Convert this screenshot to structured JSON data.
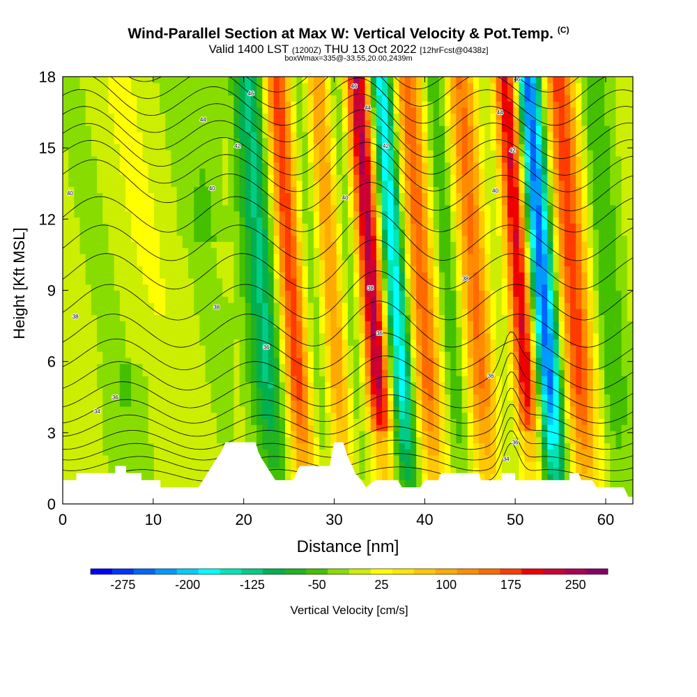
{
  "header": {
    "title": "Wind-Parallel Section at Max W: Vertical Velocity & Pot.Temp.",
    "copyright": "(C)",
    "valid_prefix": "Valid 1400 LST",
    "valid_utc": "(1200Z)",
    "valid_date": "THU 13 Oct 2022",
    "forecast": "[12hrFcst@0438z]",
    "box_info": "boxWmax=335@-33.55,20.00,2439m"
  },
  "chart_data": {
    "type": "heatmap",
    "title": "Wind-Parallel Section at Max W: Vertical Velocity & Pot.Temp.",
    "xlabel": "Distance [nm]",
    "ylabel": "Height [Kft MSL]",
    "xlim": [
      0,
      63
    ],
    "ylim": [
      0,
      18
    ],
    "xticks": [
      0,
      10,
      20,
      30,
      40,
      50,
      60
    ],
    "yticks": [
      0,
      3,
      6,
      9,
      12,
      15,
      18
    ],
    "colorbar": {
      "label": "Vertical Velocity [cm/s]",
      "tick_labels": [
        "-275",
        "-200",
        "-125",
        "-50",
        "25",
        "100",
        "175",
        "250"
      ],
      "levels": [
        -300,
        -275,
        -250,
        -225,
        -200,
        -175,
        -150,
        -125,
        -100,
        -75,
        -50,
        -25,
        0,
        25,
        50,
        75,
        100,
        125,
        150,
        175,
        200,
        225,
        250,
        275
      ],
      "colors": [
        "#0000ff",
        "#0033ff",
        "#0066ff",
        "#0099ff",
        "#00ccff",
        "#00ffff",
        "#00e6b3",
        "#00cc88",
        "#00b050",
        "#22b222",
        "#44c000",
        "#88dd00",
        "#ccee00",
        "#ffff00",
        "#ffe600",
        "#ffc800",
        "#ffaa00",
        "#ff8c00",
        "#ff6a00",
        "#ff3c00",
        "#ee0000",
        "#cc0033",
        "#aa0055",
        "#880066"
      ]
    },
    "velocity_bands": [
      {
        "x": 21.3,
        "w": 2.2,
        "amp": -120
      },
      {
        "x": 24.3,
        "w": 1.6,
        "amp": 200
      },
      {
        "x": 26.8,
        "w": 1.6,
        "amp": -60
      },
      {
        "x": 28.8,
        "w": 1.5,
        "amp": 130
      },
      {
        "x": 31.0,
        "w": 1.5,
        "amp": -60
      },
      {
        "x": 33.3,
        "w": 1.5,
        "amp": 260
      },
      {
        "x": 35.8,
        "w": 1.5,
        "amp": -200
      },
      {
        "x": 38.8,
        "w": 1.8,
        "amp": 160
      },
      {
        "x": 41.8,
        "w": 1.8,
        "amp": -80
      },
      {
        "x": 44.6,
        "w": 1.9,
        "amp": 150
      },
      {
        "x": 47.2,
        "w": 1.5,
        "amp": -40
      },
      {
        "x": 49.8,
        "w": 1.5,
        "amp": 250
      },
      {
        "x": 52.0,
        "w": 1.6,
        "amp": -275
      },
      {
        "x": 55.5,
        "w": 1.8,
        "amp": 180
      },
      {
        "x": 59.3,
        "w": 1.8,
        "amp": -60
      }
    ],
    "terrain": [
      [
        0,
        1.0
      ],
      [
        1.5,
        1.0
      ],
      [
        1.5,
        1.3
      ],
      [
        5.8,
        1.3
      ],
      [
        5.8,
        1.6
      ],
      [
        7,
        1.6
      ],
      [
        7,
        1.3
      ],
      [
        8.7,
        1.3
      ],
      [
        8.7,
        1.0
      ],
      [
        10.8,
        1.0
      ],
      [
        10.8,
        0.7
      ],
      [
        15,
        0.7
      ],
      [
        15.5,
        1.0
      ],
      [
        16,
        1.3
      ],
      [
        16.5,
        1.6
      ],
      [
        17,
        1.9
      ],
      [
        17.5,
        2.2
      ],
      [
        18,
        2.6
      ],
      [
        21.3,
        2.6
      ],
      [
        21.6,
        2.2
      ],
      [
        22,
        1.9
      ],
      [
        22.5,
        1.6
      ],
      [
        23,
        1.3
      ],
      [
        23.5,
        1.0
      ],
      [
        25.5,
        1.0
      ],
      [
        25.8,
        1.3
      ],
      [
        26.2,
        1.6
      ],
      [
        29.5,
        1.6
      ],
      [
        29.8,
        2.2
      ],
      [
        30,
        2.6
      ],
      [
        31,
        2.6
      ],
      [
        31.3,
        2.2
      ],
      [
        31.6,
        1.9
      ],
      [
        32,
        1.6
      ],
      [
        32.3,
        1.3
      ],
      [
        33,
        1.0
      ],
      [
        33.5,
        0.7
      ],
      [
        34.5,
        1.0
      ],
      [
        37,
        1.0
      ],
      [
        37.5,
        0.7
      ],
      [
        39.5,
        0.7
      ],
      [
        40,
        1.0
      ],
      [
        41.5,
        1.0
      ],
      [
        41.8,
        1.3
      ],
      [
        46,
        1.3
      ],
      [
        46.2,
        1.0
      ],
      [
        48.5,
        1.0
      ],
      [
        48.5,
        1.3
      ],
      [
        50,
        1.3
      ],
      [
        50,
        1.0
      ],
      [
        56,
        1.0
      ],
      [
        56,
        1.3
      ],
      [
        57,
        1.3
      ],
      [
        57.3,
        1.0
      ],
      [
        58.5,
        1.0
      ],
      [
        59,
        0.7
      ],
      [
        62,
        0.7
      ],
      [
        62.5,
        0.3
      ],
      [
        63,
        0.3
      ],
      [
        63,
        0
      ]
    ],
    "theta_labels": [
      {
        "x": 20.8,
        "y": 17.3,
        "label": "46"
      },
      {
        "x": 15.5,
        "y": 16.2,
        "label": "44"
      },
      {
        "x": 19.3,
        "y": 15.1,
        "label": "42"
      },
      {
        "x": 16.5,
        "y": 13.3,
        "label": "40"
      },
      {
        "x": 0.8,
        "y": 13.1,
        "label": "40"
      },
      {
        "x": 32.2,
        "y": 17.6,
        "label": "46"
      },
      {
        "x": 33.7,
        "y": 16.7,
        "label": "44"
      },
      {
        "x": 35.7,
        "y": 15.1,
        "label": "42"
      },
      {
        "x": 31.2,
        "y": 12.9,
        "label": "40"
      },
      {
        "x": 50.2,
        "y": 17.9,
        "label": "46"
      },
      {
        "x": 48.3,
        "y": 16.5,
        "label": "44"
      },
      {
        "x": 49.7,
        "y": 14.9,
        "label": "42"
      },
      {
        "x": 47.8,
        "y": 13.2,
        "label": "40"
      },
      {
        "x": 44.5,
        "y": 9.5,
        "label": "38"
      },
      {
        "x": 34.0,
        "y": 9.1,
        "label": "38"
      },
      {
        "x": 17.0,
        "y": 8.3,
        "label": "38"
      },
      {
        "x": 1.4,
        "y": 7.9,
        "label": "38"
      },
      {
        "x": 35.0,
        "y": 7.2,
        "label": "36"
      },
      {
        "x": 22.5,
        "y": 6.6,
        "label": "36"
      },
      {
        "x": 47.3,
        "y": 5.4,
        "label": "36"
      },
      {
        "x": 5.8,
        "y": 4.5,
        "label": "36"
      },
      {
        "x": 3.8,
        "y": 3.9,
        "label": "34"
      },
      {
        "x": 50.0,
        "y": 2.6,
        "label": "36"
      },
      {
        "x": 49.0,
        "y": 1.9,
        "label": "34"
      }
    ]
  }
}
